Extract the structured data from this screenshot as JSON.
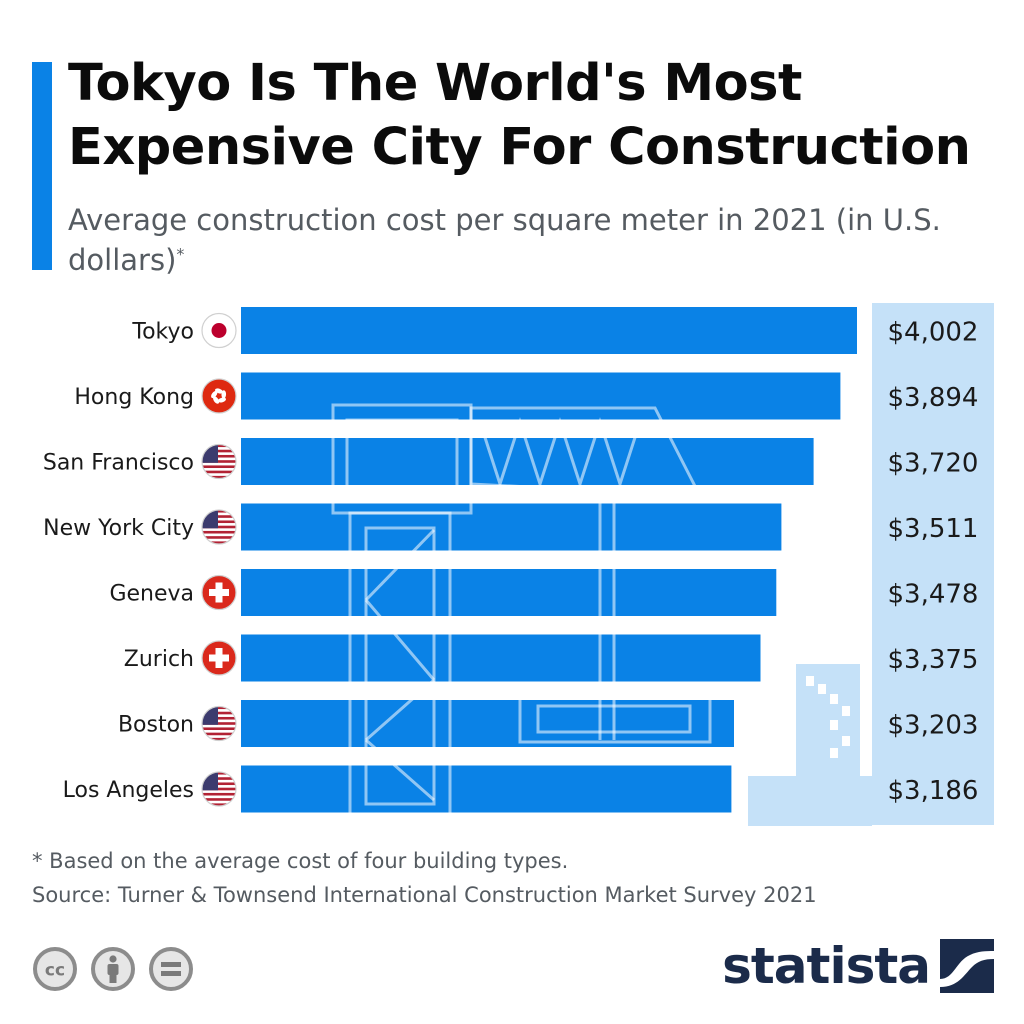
{
  "header": {
    "title": "Tokyo Is The World's Most Expensive City For Construction",
    "subtitle": "Average construction cost per square meter in 2021 (in U.S. dollars)",
    "subtitle_marker": "*"
  },
  "chart_data": {
    "type": "bar",
    "orientation": "horizontal",
    "categories": [
      "Tokyo",
      "Hong Kong",
      "San Francisco",
      "New York City",
      "Geneva",
      "Zurich",
      "Boston",
      "Los Angeles"
    ],
    "values": [
      4002,
      3894,
      3720,
      3511,
      3478,
      3375,
      3203,
      3186
    ],
    "value_labels": [
      "$4,002",
      "$3,894",
      "$3,720",
      "$3,511",
      "$3,478",
      "$3,375",
      "$3,203",
      "$3,186"
    ],
    "flags": [
      "japan-flag-icon",
      "hong-kong-flag-icon",
      "usa-flag-icon",
      "usa-flag-icon",
      "switzerland-flag-icon",
      "switzerland-flag-icon",
      "usa-flag-icon",
      "usa-flag-icon"
    ],
    "unit": "U.S. dollars per square meter",
    "bar_color": "#0a82e6",
    "value_panel_color": "#c5e1f8",
    "grid": false,
    "legend": "none"
  },
  "footer": {
    "footnote": "* Based on the average cost of four building types.",
    "source": "Source: Turner & Townsend International Construction Market Survey 2021",
    "license_icons": [
      "creative-commons-icon",
      "attribution-icon",
      "no-derivatives-icon"
    ],
    "logo": "statista"
  }
}
